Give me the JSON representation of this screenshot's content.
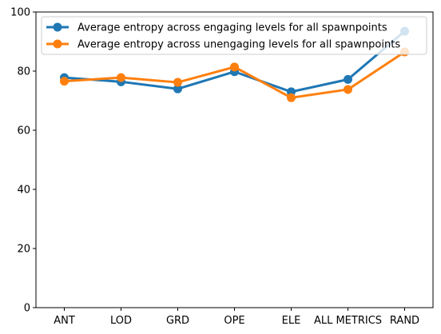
{
  "chart_data": {
    "type": "line",
    "categories": [
      "ANT",
      "LOD",
      "GRD",
      "OPE",
      "ELE",
      "ALL METRICS",
      "RAND"
    ],
    "ylim": [
      0,
      100
    ],
    "yticks": [
      0,
      20,
      40,
      60,
      80,
      100
    ],
    "grid": false,
    "legend_position": "top",
    "series": [
      {
        "name": "Average entropy across engaging levels for all spawnpoints",
        "color": "#1f77b4",
        "values": [
          77.8,
          76.4,
          74.0,
          79.8,
          73.0,
          77.2,
          93.5
        ]
      },
      {
        "name": "Average entropy across unengaging levels for all spawnpoints",
        "color": "#ff7f0e",
        "values": [
          76.6,
          77.8,
          76.2,
          81.4,
          71.0,
          73.8,
          86.5
        ]
      }
    ]
  }
}
